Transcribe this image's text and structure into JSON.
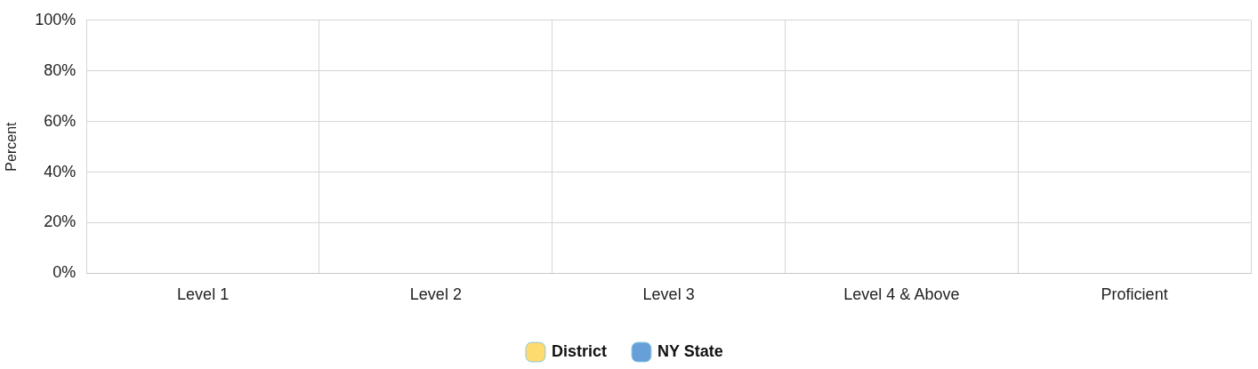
{
  "chart_data": {
    "type": "bar",
    "ylabel": "Percent",
    "categories": [
      "Level 1",
      "Level 2",
      "Level 3",
      "Level 4 & Above",
      "Proficient"
    ],
    "series": [
      {
        "name": "District",
        "color": "#fddb6e",
        "values": [
          null,
          null,
          null,
          null,
          null
        ]
      },
      {
        "name": "NY State",
        "color": "#67a0d9",
        "values": [
          null,
          null,
          null,
          null,
          null
        ]
      }
    ],
    "ylim": [
      0,
      100
    ],
    "yticks": [
      {
        "value": 0,
        "label": "0%"
      },
      {
        "value": 20,
        "label": "20%"
      },
      {
        "value": 40,
        "label": "40%"
      },
      {
        "value": 60,
        "label": "60%"
      },
      {
        "value": 80,
        "label": "80%"
      },
      {
        "value": 100,
        "label": "100%"
      }
    ],
    "grid": true,
    "legend": "bottom"
  }
}
